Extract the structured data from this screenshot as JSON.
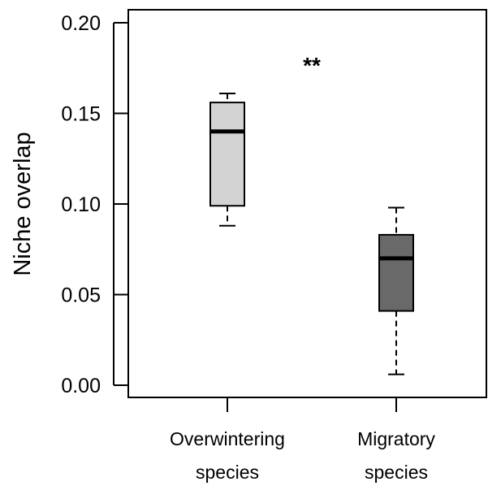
{
  "chart_data": {
    "type": "box",
    "ylabel": "Niche overlap",
    "xlabel": "",
    "ylim": [
      0,
      0.2
    ],
    "yticks": [
      {
        "value": 0.0,
        "label": "0.00"
      },
      {
        "value": 0.05,
        "label": "0.05"
      },
      {
        "value": 0.1,
        "label": "0.10"
      },
      {
        "value": 0.15,
        "label": "0.15"
      },
      {
        "value": 0.2,
        "label": "0.20"
      }
    ],
    "categories": [
      {
        "line1": "Overwintering",
        "line2": "species"
      },
      {
        "line1": "Migratory",
        "line2": "species"
      }
    ],
    "boxes": [
      {
        "min": 0.088,
        "q1": 0.099,
        "median": 0.14,
        "q3": 0.156,
        "max": 0.161,
        "fill": "#d3d3d3"
      },
      {
        "min": 0.006,
        "q1": 0.041,
        "median": 0.07,
        "q3": 0.083,
        "max": 0.098,
        "fill": "#696969"
      }
    ],
    "annotation": "**",
    "grid": false
  }
}
